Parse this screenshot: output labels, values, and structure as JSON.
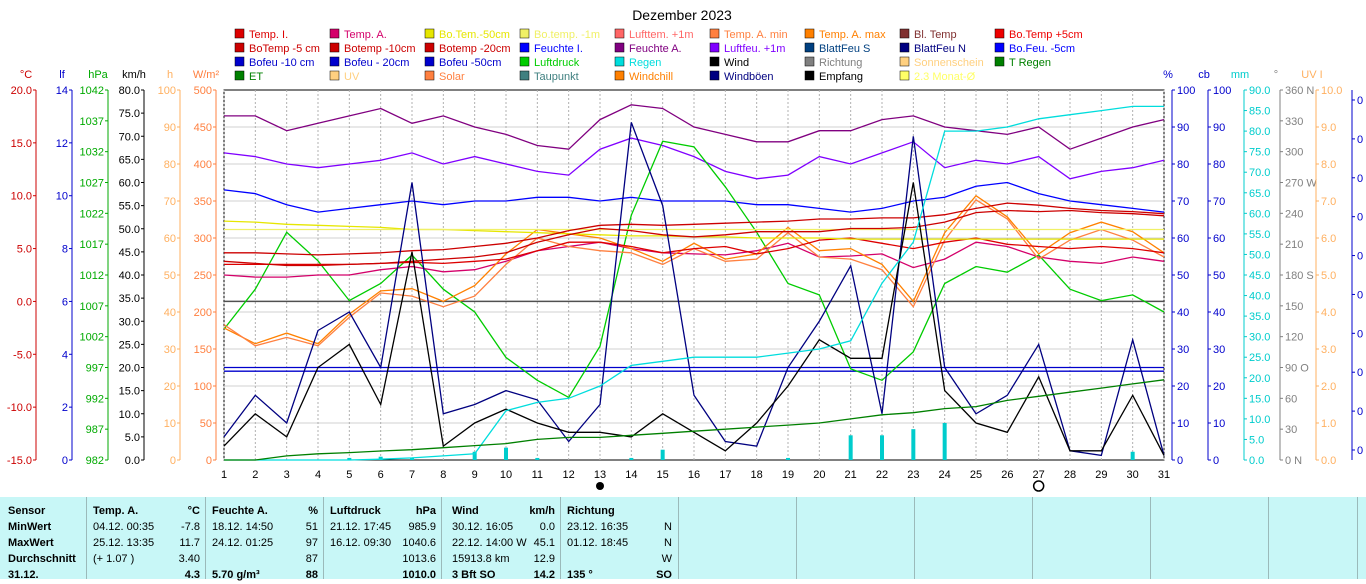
{
  "title": "Dezember 2023",
  "legend": [
    [
      {
        "label": "Temp. I.",
        "color": "#dd0000"
      },
      {
        "label": "Temp. A.",
        "color": "#d4006a"
      },
      {
        "label": "Bo.Tem.-50cm",
        "color": "#e6e600"
      },
      {
        "label": "Bo.temp. -1m",
        "color": "#f0f066"
      },
      {
        "label": "Lufttem. +1m",
        "color": "#ff6666"
      },
      {
        "label": "Temp. A. min",
        "color": "#ff8040"
      },
      {
        "label": "Temp. A. max",
        "color": "#ff8000"
      },
      {
        "label": "Bl. Temp",
        "color": "#803030"
      },
      {
        "label": "Bo.Temp +5cm",
        "color": "#ee0000"
      }
    ],
    [
      {
        "label": "BoTemp -5 cm",
        "color": "#cc0000"
      },
      {
        "label": "Botemp -10cm",
        "color": "#cc0000"
      },
      {
        "label": "Botemp -20cm",
        "color": "#cc0000"
      },
      {
        "label": "Feuchte I.",
        "color": "#0000ff"
      },
      {
        "label": "Feuchte A.",
        "color": "#800080"
      },
      {
        "label": "Luftfeu. +1m",
        "color": "#8000ff"
      },
      {
        "label": "BlattFeu S",
        "color": "#004080"
      },
      {
        "label": "BlattFeu N",
        "color": "#000080"
      },
      {
        "label": "Bo.Feu. -5cm",
        "color": "#0000ff"
      }
    ],
    [
      {
        "label": "Bofeu -10 cm",
        "color": "#0000cc"
      },
      {
        "label": "Bofeu - 20cm",
        "color": "#0000cc"
      },
      {
        "label": "Bofeu -50cm",
        "color": "#0000cc"
      },
      {
        "label": "Luftdruck",
        "color": "#00cc00"
      },
      {
        "label": "Regen",
        "color": "#00dddd"
      },
      {
        "label": "Wind",
        "color": "#000000"
      },
      {
        "label": "Richtung",
        "color": "#808080"
      },
      {
        "label": "Sonnenschein",
        "color": "#ffd080"
      },
      {
        "label": "T Regen",
        "color": "#008000"
      }
    ],
    [
      {
        "label": "ET",
        "color": "#008000"
      },
      {
        "label": "UV",
        "color": "#ffd080"
      },
      {
        "label": "Solar",
        "color": "#ff8040"
      },
      {
        "label": "Taupunkt",
        "color": "#408080"
      },
      {
        "label": "Windchill",
        "color": "#ff8000"
      },
      {
        "label": "Windböen",
        "color": "#000080"
      },
      {
        "label": "Empfang",
        "color": "#000000"
      },
      {
        "label": "2.3 Monat-Ø",
        "color": "#ffff66"
      }
    ]
  ],
  "left_axes": [
    {
      "unit": "°C",
      "color": "#cc0000",
      "ticks": [
        "20.0",
        "15.0",
        "10.0",
        "5.0",
        "0.0",
        "-5.0",
        "-10.0",
        "-15.0"
      ]
    },
    {
      "unit": "lf",
      "color": "#0000cc",
      "ticks": [
        "14",
        "12",
        "10",
        "8",
        "6",
        "4",
        "2",
        "0"
      ]
    },
    {
      "unit": "hPa",
      "color": "#00aa00",
      "ticks": [
        "1042",
        "1037",
        "1032",
        "1027",
        "1022",
        "1017",
        "1012",
        "1007",
        "1002",
        "997",
        "992",
        "987",
        "982"
      ]
    },
    {
      "unit": "km/h",
      "color": "#000000",
      "ticks": [
        "80.0",
        "75.0",
        "70.0",
        "65.0",
        "60.0",
        "55.0",
        "50.0",
        "45.0",
        "40.0",
        "35.0",
        "30.0",
        "25.0",
        "20.0",
        "15.0",
        "10.0",
        "5.0",
        "0.0"
      ]
    },
    {
      "unit": "h",
      "color": "#ffb060",
      "ticks": [
        "100",
        "90",
        "80",
        "70",
        "60",
        "50",
        "40",
        "30",
        "20",
        "10",
        "0"
      ]
    },
    {
      "unit": "W/m²",
      "color": "#ff8040",
      "ticks": [
        "500",
        "450",
        "400",
        "350",
        "300",
        "250",
        "200",
        "150",
        "100",
        "50",
        "0"
      ]
    }
  ],
  "right_axes": [
    {
      "unit": "%",
      "color": "#0000cc",
      "ticks": [
        "100",
        "90",
        "80",
        "70",
        "60",
        "50",
        "40",
        "30",
        "20",
        "10",
        "0"
      ]
    },
    {
      "unit": "cb",
      "color": "#0000cc",
      "ticks": [
        "100",
        "90",
        "80",
        "70",
        "60",
        "50",
        "40",
        "30",
        "20",
        "10",
        "0"
      ]
    },
    {
      "unit": "mm",
      "color": "#00cccc",
      "ticks": [
        "90.0",
        "85.0",
        "80.0",
        "75.0",
        "70.0",
        "65.0",
        "60.0",
        "55.0",
        "50.0",
        "45.0",
        "40.0",
        "35.0",
        "30.0",
        "25.0",
        "20.0",
        "15.0",
        "10.0",
        "5.0",
        "0.0"
      ]
    },
    {
      "unit": "°",
      "color": "#808080",
      "ticks": [
        "360 N",
        "330",
        "300",
        "270 W",
        "240",
        "210",
        "180 S",
        "150",
        "120",
        "90 O",
        "60",
        "30",
        "0 N"
      ]
    },
    {
      "unit": "UV I",
      "color": "#ffb060",
      "ticks": [
        "10.0",
        "9.0",
        "8.0",
        "7.0",
        "6.0",
        "5.0",
        "4.0",
        "3.0",
        "2.0",
        "1.0",
        "0.0"
      ]
    },
    {
      "unit": "",
      "color": "#0000cc",
      "ticks": [
        "0",
        "0",
        "0",
        "0",
        "0",
        "0",
        "0",
        "0",
        "0",
        "0"
      ]
    }
  ],
  "chart_data": {
    "type": "line",
    "title": "Dezember 2023",
    "x": [
      1,
      2,
      3,
      4,
      5,
      6,
      7,
      8,
      9,
      10,
      11,
      12,
      13,
      14,
      15,
      16,
      17,
      18,
      19,
      20,
      21,
      22,
      23,
      24,
      25,
      26,
      27,
      28,
      29,
      30,
      31
    ],
    "xlim": [
      1,
      31
    ],
    "series": [
      {
        "name": "Feuchte A.",
        "axis": "%",
        "color": "#800080",
        "values": [
          93,
          93,
          89,
          91,
          93,
          95,
          91,
          93,
          90,
          88,
          85,
          84,
          92,
          96,
          95,
          90,
          88,
          86,
          86,
          89,
          89,
          92,
          93,
          90,
          89,
          88,
          90,
          84,
          87,
          90,
          92
        ]
      },
      {
        "name": "Luftfeu. +1m",
        "axis": "%",
        "color": "#8000ff",
        "values": [
          83,
          82,
          80,
          79,
          80,
          81,
          83,
          80,
          82,
          80,
          78,
          77,
          84,
          87,
          85,
          82,
          78,
          76,
          77,
          82,
          80,
          83,
          86,
          79,
          81,
          80,
          82,
          76,
          78,
          79,
          81
        ]
      },
      {
        "name": "Feuchte I.",
        "axis": "%",
        "color": "#0000ff",
        "values": [
          73,
          72,
          69,
          67,
          68,
          69,
          70,
          69,
          70,
          70,
          71,
          71,
          70,
          71,
          70,
          70,
          70,
          69,
          69,
          68,
          67,
          68,
          70,
          71,
          74,
          75,
          72,
          70,
          69,
          68,
          67
        ]
      },
      {
        "name": "Bofeu -10 cm",
        "axis": "%",
        "color": "#0000cc",
        "values": [
          25,
          25,
          25,
          25,
          25,
          25,
          25,
          25,
          25,
          25,
          25,
          25,
          25,
          25,
          25,
          25,
          25,
          25,
          25,
          25,
          25,
          25,
          25,
          25,
          25,
          25,
          25,
          25,
          25,
          25,
          25
        ]
      },
      {
        "name": "Bofeu -50cm",
        "axis": "%",
        "color": "#0000cc",
        "values": [
          24,
          24,
          24,
          24,
          24,
          24,
          24,
          24,
          24,
          24,
          24,
          24,
          24,
          24,
          24,
          24,
          24,
          24,
          24,
          24,
          24,
          24,
          24,
          24,
          24,
          24,
          24,
          24,
          24,
          24,
          24
        ]
      },
      {
        "name": "Luftdruck",
        "axis": "hPa",
        "color": "#00cc00",
        "values": [
          1005,
          1012,
          1022,
          1017,
          1010,
          1013,
          1018,
          1012,
          1008,
          1000,
          996,
          993,
          1002,
          1025,
          1038,
          1037,
          1030,
          1022,
          1013,
          1011,
          998,
          996,
          1001,
          1013,
          1016,
          1015,
          1018,
          1012,
          1010,
          1011,
          1008
        ]
      },
      {
        "name": "Temp. A.",
        "axis": "°C",
        "color": "#d4006a",
        "values": [
          2.5,
          2.3,
          2.3,
          2.5,
          2.5,
          3.0,
          3.3,
          2.8,
          3.0,
          3.8,
          4.8,
          5.2,
          5.6,
          5.0,
          4.6,
          4.5,
          4.4,
          4.8,
          5.5,
          4.2,
          4.3,
          4.5,
          3.2,
          4.0,
          5.6,
          5.2,
          4.2,
          3.8,
          3.6,
          4.2,
          3.8
        ]
      },
      {
        "name": "Temp. A. max",
        "axis": "°C",
        "color": "#ff8000",
        "values": [
          -2.5,
          -4.0,
          -3.0,
          -4.0,
          -1.2,
          1.0,
          1.2,
          0.0,
          1.5,
          4.5,
          6.8,
          6.4,
          6.0,
          5.0,
          3.8,
          5.5,
          4.0,
          4.5,
          7.0,
          4.8,
          5.0,
          3.5,
          0.0,
          6.5,
          10.0,
          8.0,
          4.5,
          6.5,
          7.5,
          6.6,
          4.6
        ]
      },
      {
        "name": "Temp. A. min",
        "axis": "°C",
        "color": "#ff8040",
        "values": [
          -2.2,
          -4.2,
          -3.4,
          -4.2,
          -1.5,
          0.8,
          0.5,
          -0.5,
          0.5,
          3.5,
          6.0,
          5.2,
          4.8,
          4.6,
          3.5,
          5.0,
          3.8,
          4.0,
          6.5,
          4.2,
          4.0,
          3.0,
          -0.5,
          5.8,
          9.6,
          7.8,
          4.0,
          5.8,
          6.8,
          5.8,
          4.2
        ]
      },
      {
        "name": "Temp. I.",
        "axis": "°C",
        "color": "#dd0000",
        "values": [
          3.5,
          3.5,
          3.5,
          3.5,
          3.5,
          3.6,
          3.7,
          3.6,
          3.8,
          4.0,
          4.8,
          5.6,
          5.6,
          5.2,
          4.6,
          5.0,
          5.2,
          4.5,
          5.0,
          5.8,
          6.0,
          5.5,
          5.0,
          5.6,
          6.0,
          5.4,
          5.2,
          5.0,
          5.2,
          5.0,
          4.6
        ]
      },
      {
        "name": "Bo.Tem.-50cm",
        "axis": "°C",
        "color": "#e6e600",
        "values": [
          7.6,
          7.5,
          7.3,
          7.2,
          7.1,
          7.0,
          6.8,
          6.8,
          6.7,
          6.6,
          6.5,
          6.4,
          6.3,
          6.2,
          6.2,
          6.1,
          6.1,
          6.0,
          6.0,
          6.0,
          5.9,
          5.9,
          5.9,
          5.9,
          5.9,
          5.9,
          5.9,
          5.9,
          5.9,
          5.9,
          5.9
        ]
      },
      {
        "name": "Bo.temp. -1m",
        "axis": "°C",
        "color": "#f0f066",
        "values": [
          6.8,
          6.8,
          6.8,
          6.8,
          6.8,
          6.8,
          6.8,
          6.8,
          6.8,
          6.8,
          6.8,
          6.8,
          6.8,
          6.8,
          6.8,
          6.8,
          6.8,
          6.8,
          6.8,
          6.8,
          6.8,
          6.8,
          6.8,
          6.8,
          6.8,
          6.8,
          6.8,
          6.8,
          6.8,
          6.8,
          6.8
        ]
      },
      {
        "name": "Botemp -10cm",
        "axis": "°C",
        "color": "#cc0000",
        "values": [
          3.8,
          3.6,
          3.4,
          3.4,
          3.5,
          3.6,
          3.8,
          4.0,
          4.2,
          4.6,
          5.6,
          6.3,
          6.9,
          6.7,
          6.3,
          6.1,
          6.3,
          6.6,
          6.6,
          6.6,
          6.9,
          6.9,
          7.0,
          7.5,
          8.4,
          8.6,
          8.5,
          8.6,
          8.4,
          8.3,
          8.1
        ]
      },
      {
        "name": "Botemp -20cm",
        "axis": "°C",
        "color": "#cc0000",
        "values": [
          4.6,
          4.6,
          4.5,
          4.4,
          4.5,
          4.6,
          4.8,
          4.9,
          5.2,
          5.5,
          6.0,
          6.7,
          7.2,
          7.3,
          7.2,
          7.3,
          7.4,
          7.5,
          7.6,
          7.8,
          7.8,
          7.9,
          7.9,
          8.2,
          8.8,
          9.3,
          9.1,
          8.8,
          8.6,
          8.5,
          8.3
        ]
      },
      {
        "name": "Windböen",
        "axis": "km/h",
        "color": "#000080",
        "values": [
          5,
          14,
          8,
          28,
          32,
          20,
          60,
          10,
          12,
          15,
          13,
          4,
          12,
          73,
          55,
          14,
          4,
          3,
          20,
          30,
          42,
          10,
          70,
          20,
          10,
          14,
          25,
          2,
          1,
          26,
          1
        ]
      },
      {
        "name": "Wind",
        "axis": "km/h",
        "color": "#000000",
        "values": [
          3,
          10,
          5,
          20,
          25,
          12,
          45,
          3,
          8,
          11,
          8,
          6,
          6,
          5,
          10,
          6,
          2,
          8,
          16,
          26,
          22,
          22,
          60,
          15,
          8,
          6,
          18,
          2,
          2,
          14,
          1
        ]
      },
      {
        "name": "Regen",
        "axis": "mm",
        "color": "#00dddd",
        "values": [
          0,
          0,
          0,
          0,
          0,
          0.2,
          0.5,
          1.0,
          1.5,
          12,
          14,
          15,
          18,
          23,
          24,
          25,
          25,
          25,
          26,
          27,
          29,
          43,
          53,
          80,
          80,
          81,
          83,
          84,
          85,
          86,
          86
        ]
      },
      {
        "name": "ET",
        "axis": "mm",
        "color": "#008000",
        "values": [
          0,
          0,
          1,
          1.5,
          1.8,
          2.2,
          2.5,
          3,
          3.5,
          4,
          5,
          5.5,
          5.5,
          6,
          6.5,
          7,
          7.5,
          8,
          8.5,
          9,
          10,
          11,
          11.5,
          12.5,
          13,
          14.5,
          15.5,
          16.5,
          17.5,
          18.5,
          19.5
        ]
      }
    ],
    "rain_bars": {
      "axis": "mm",
      "x": [
        5,
        6,
        7,
        9,
        10,
        11,
        14,
        15,
        19,
        21,
        22,
        23,
        24,
        30
      ],
      "values": [
        0.5,
        0.8,
        0.5,
        2,
        3,
        0.5,
        0.5,
        2.5,
        0.5,
        6,
        6,
        7.5,
        9,
        2
      ]
    },
    "day_markers": [
      {
        "day": 13,
        "symbol": "new-moon"
      },
      {
        "day": 27,
        "symbol": "full-moon"
      }
    ]
  },
  "stats": {
    "header": [
      "Sensor",
      "Temp. A.",
      "°C",
      "Feuchte A.",
      "%",
      "Luftdruck",
      "hPa",
      "Wind",
      "km/h",
      "Richtung",
      ""
    ],
    "rows": [
      [
        "MinWert",
        "04.12.  00:35",
        "-7.8",
        "18.12.  14:50",
        "51",
        "21.12.  17:45",
        "985.9",
        "30.12.  16:05",
        "0.0",
        "23.12.  16:35",
        "N"
      ],
      [
        "MaxWert",
        "25.12.  13:35",
        "11.7",
        "24.12.  01:25",
        "97",
        "16.12.  09:30",
        "1040.6",
        "22.12.  14:00  W",
        "45.1",
        "01.12.  18:45",
        "N"
      ],
      [
        "Durchschnitt",
        "(+ 1.07 )",
        "3.40",
        "",
        "87",
        "",
        "1013.6",
        "15913.8 km",
        "12.9",
        "",
        "W"
      ],
      [
        "31.12.",
        "",
        "4.3",
        "5.70 g/m³",
        "88",
        "",
        "1010.0",
        "3 Bft SO",
        "14.2",
        "135 °",
        "SO"
      ]
    ]
  }
}
